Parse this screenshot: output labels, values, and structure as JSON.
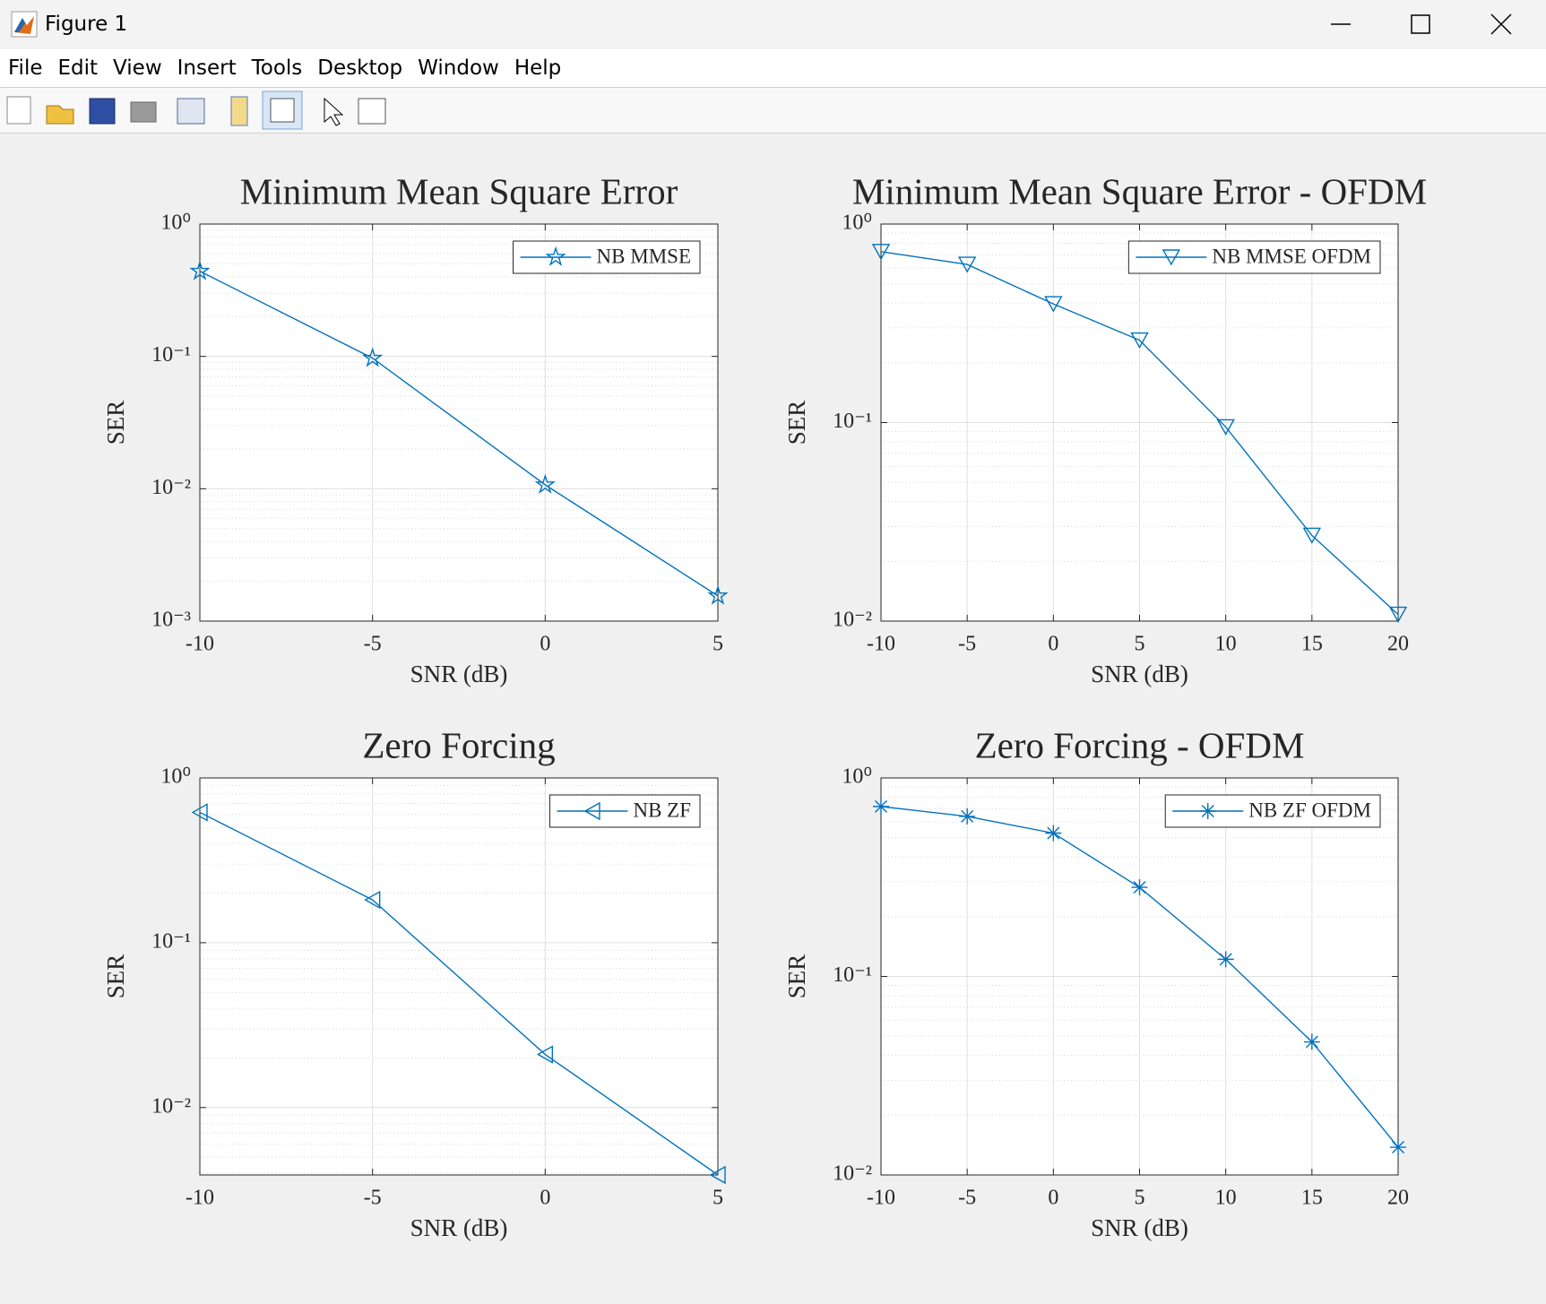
{
  "window": {
    "title": "Figure 1",
    "menu": [
      "File",
      "Edit",
      "View",
      "Insert",
      "Tools",
      "Desktop",
      "Window",
      "Help"
    ]
  },
  "chart_data": [
    {
      "type": "line",
      "title": "Minimum Mean Square Error",
      "xlabel": "SNR (dB)",
      "ylabel": "SER",
      "x": [
        -10,
        -5,
        0,
        5
      ],
      "xlim": [
        -10,
        5
      ],
      "xticks": [
        -10,
        -5,
        0,
        5
      ],
      "yscale": "log",
      "ylim": [
        0.001,
        1
      ],
      "yticks": [
        {
          "value": 0.001,
          "label": "10⁻³"
        },
        {
          "value": 0.01,
          "label": "10⁻²"
        },
        {
          "value": 0.1,
          "label": "10⁻¹"
        },
        {
          "value": 1,
          "label": "10⁰"
        }
      ],
      "grid": true,
      "minor_grid": true,
      "legend": "northeast",
      "series": [
        {
          "name": "NB MMSE",
          "color": "#0072bd",
          "marker": "pentagram",
          "values": [
            0.44,
            0.097,
            0.0107,
            0.00155
          ]
        }
      ]
    },
    {
      "type": "line",
      "title": "Minimum Mean Square Error - OFDM",
      "xlabel": "SNR (dB)",
      "ylabel": "SER",
      "x": [
        -10,
        -5,
        0,
        5,
        10,
        15,
        20
      ],
      "xlim": [
        -10,
        20
      ],
      "xticks": [
        -10,
        -5,
        0,
        5,
        10,
        15,
        20
      ],
      "yscale": "log",
      "ylim": [
        0.01,
        1
      ],
      "yticks": [
        {
          "value": 0.01,
          "label": "10⁻²"
        },
        {
          "value": 0.1,
          "label": "10⁻¹"
        },
        {
          "value": 1,
          "label": "10⁰"
        }
      ],
      "grid": true,
      "minor_grid": true,
      "legend": "northeast",
      "series": [
        {
          "name": "NB MMSE OFDM",
          "color": "#0072bd",
          "marker": "triangle-down",
          "values": [
            0.726,
            0.626,
            0.396,
            0.26,
            0.095,
            0.027,
            0.0108
          ]
        }
      ]
    },
    {
      "type": "line",
      "title": "Zero Forcing",
      "xlabel": "SNR (dB)",
      "ylabel": "SER",
      "x": [
        -10,
        -5,
        0,
        5
      ],
      "xlim": [
        -10,
        5
      ],
      "xticks": [
        -10,
        -5,
        0,
        5
      ],
      "yscale": "log",
      "ylim": [
        0.0039,
        1
      ],
      "yticks": [
        {
          "value": 0.01,
          "label": "10⁻²"
        },
        {
          "value": 0.1,
          "label": "10⁻¹"
        },
        {
          "value": 1,
          "label": "10⁰"
        }
      ],
      "grid": true,
      "minor_grid": true,
      "legend": "northeast",
      "series": [
        {
          "name": "NB ZF",
          "color": "#0072bd",
          "marker": "triangle-left",
          "values": [
            0.618,
            0.182,
            0.021,
            0.0039
          ]
        }
      ]
    },
    {
      "type": "line",
      "title": "Zero Forcing - OFDM",
      "xlabel": "SNR (dB)",
      "ylabel": "SER",
      "x": [
        -10,
        -5,
        0,
        5,
        10,
        15,
        20
      ],
      "xlim": [
        -10,
        20
      ],
      "xticks": [
        -10,
        -5,
        0,
        5,
        10,
        15,
        20
      ],
      "yscale": "log",
      "ylim": [
        0.01,
        1
      ],
      "yticks": [
        {
          "value": 0.01,
          "label": "10⁻²"
        },
        {
          "value": 0.1,
          "label": "10⁻¹"
        },
        {
          "value": 1,
          "label": "10⁰"
        }
      ],
      "grid": true,
      "minor_grid": true,
      "legend": "northeast",
      "series": [
        {
          "name": "NB ZF OFDM",
          "color": "#0072bd",
          "marker": "asterisk",
          "values": [
            0.718,
            0.64,
            0.527,
            0.281,
            0.122,
            0.0468,
            0.0138
          ]
        }
      ]
    }
  ]
}
